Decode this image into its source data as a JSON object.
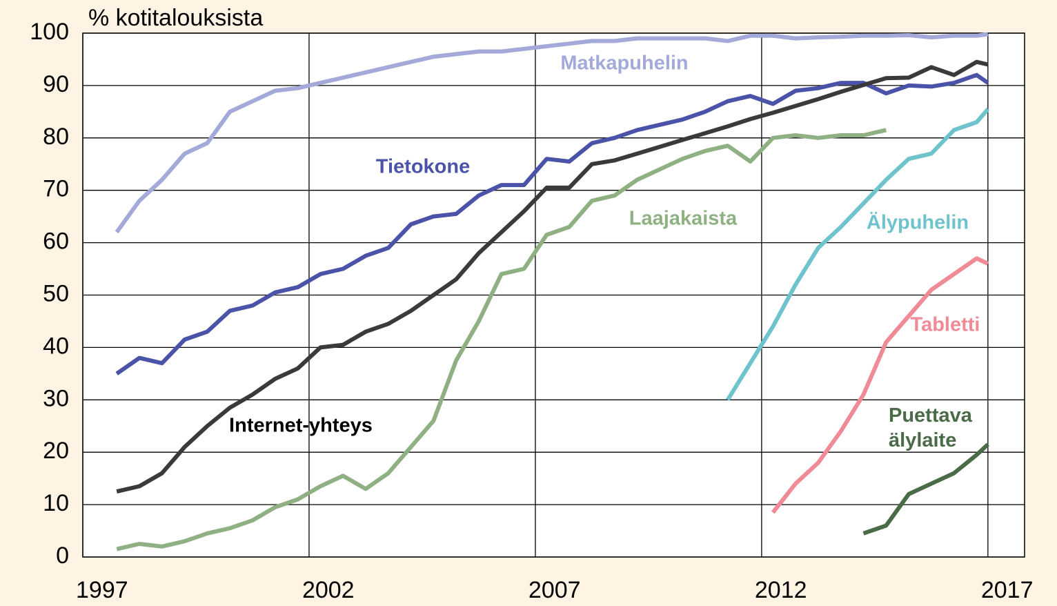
{
  "chart_data": {
    "type": "line",
    "y_label": "% kotitalouksista",
    "x": [
      1997.75,
      1998.25,
      1998.75,
      1999.25,
      1999.75,
      2000.25,
      2000.75,
      2001.25,
      2001.75,
      2002.25,
      2002.75,
      2003.25,
      2003.75,
      2004.25,
      2004.75,
      2005.25,
      2005.75,
      2006.25,
      2006.75,
      2007.25,
      2007.75,
      2008.25,
      2008.75,
      2009.25,
      2009.75,
      2010.25,
      2010.75,
      2011.25,
      2011.75,
      2012.25,
      2012.75,
      2013.25,
      2013.75,
      2014.25,
      2014.75,
      2015.25,
      2015.75,
      2016.25,
      2016.75,
      2017.0
    ],
    "series": [
      {
        "name": "Matkapuhelin",
        "color": "#a3a9d8",
        "values": [
          62,
          68,
          72,
          77,
          79,
          85,
          87,
          89,
          89.5,
          90.5,
          91.5,
          92.5,
          93.5,
          94.5,
          95.5,
          96,
          96.5,
          96.5,
          97,
          97.5,
          98,
          98.5,
          98.5,
          99,
          99,
          99,
          99,
          98.5,
          99.5,
          99.5,
          99,
          99.2,
          99.3,
          99.5,
          99.5,
          99.6,
          99.2,
          99.5,
          99.5,
          99.8
        ]
      },
      {
        "name": "Tietokone",
        "color": "#4b53a8",
        "values": [
          35,
          38,
          37,
          41.5,
          43,
          47,
          48,
          50.5,
          51.5,
          54,
          55,
          57.5,
          59,
          63.5,
          65,
          65.5,
          69,
          71,
          71,
          76,
          75.5,
          79,
          80,
          81.5,
          82.5,
          83.5,
          85,
          87,
          88,
          86.5,
          89,
          89.5,
          90.5,
          90.5,
          88.5,
          90,
          89.8,
          90.5,
          92,
          90.5
        ]
      },
      {
        "name": "Internet-yhteys",
        "color": "#3a3a3a",
        "values": [
          12.5,
          13.5,
          16,
          21,
          25,
          28.5,
          31,
          34,
          36,
          40,
          40.5,
          43,
          44.5,
          47,
          50,
          53,
          58,
          62,
          66,
          70.5,
          70.5,
          75,
          75.7,
          77,
          78.3,
          79.6,
          80.9,
          82.2,
          83.6,
          84.8,
          86.1,
          87.4,
          88.8,
          90.1,
          91.4,
          91.5,
          93.5,
          92,
          94.5,
          94
        ]
      },
      {
        "name": "Laajakaista",
        "color": "#8fb083",
        "values": [
          1.5,
          2.5,
          2,
          3,
          4.5,
          5.5,
          7,
          9.5,
          11,
          13.5,
          15.5,
          13,
          16,
          21,
          26,
          37.5,
          45,
          54,
          55,
          61.5,
          63,
          68,
          69,
          72,
          74,
          76,
          77.5,
          78.5,
          75.5,
          80,
          80.5,
          80,
          80.5,
          80.5,
          81.5,
          null,
          null,
          null,
          null,
          null
        ]
      },
      {
        "name": "Älypuhelin",
        "color": "#6fc3cc",
        "values": [
          null,
          null,
          null,
          null,
          null,
          null,
          null,
          null,
          null,
          null,
          null,
          null,
          null,
          null,
          null,
          null,
          null,
          null,
          null,
          null,
          null,
          null,
          null,
          null,
          null,
          null,
          null,
          30,
          37,
          44,
          52,
          59,
          63,
          67.5,
          72,
          76,
          77,
          81.5,
          83,
          85.5
        ]
      },
      {
        "name": "Tabletti",
        "color": "#ef8a96",
        "values": [
          null,
          null,
          null,
          null,
          null,
          null,
          null,
          null,
          null,
          null,
          null,
          null,
          null,
          null,
          null,
          null,
          null,
          null,
          null,
          null,
          null,
          null,
          null,
          null,
          null,
          null,
          null,
          null,
          null,
          8.5,
          14,
          18,
          24,
          31,
          41,
          46,
          51,
          54,
          57,
          56
        ]
      },
      {
        "name": "Puettava älylaite",
        "color": "#4a6b47",
        "values": [
          null,
          null,
          null,
          null,
          null,
          null,
          null,
          null,
          null,
          null,
          null,
          null,
          null,
          null,
          null,
          null,
          null,
          null,
          null,
          null,
          null,
          null,
          null,
          null,
          null,
          null,
          null,
          null,
          null,
          null,
          null,
          null,
          null,
          4.5,
          6,
          12,
          14,
          16,
          19.5,
          21.5
        ]
      }
    ],
    "xlim": [
      1997,
      2017.81
    ],
    "xticks": [
      1997,
      2002,
      2007,
      2012,
      2017
    ],
    "ylim": [
      0,
      100
    ],
    "yticks": [
      0,
      10,
      20,
      30,
      40,
      50,
      60,
      70,
      80,
      90,
      100
    ],
    "grid": true
  }
}
